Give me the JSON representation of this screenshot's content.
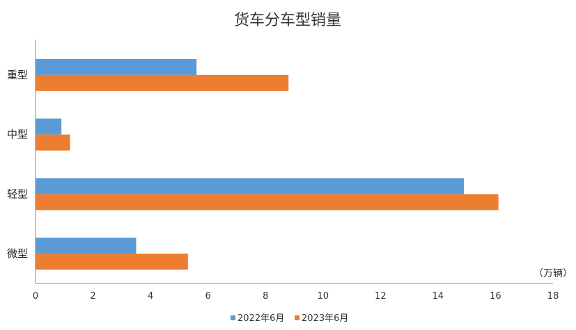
{
  "chart_data": {
    "type": "bar",
    "orientation": "horizontal",
    "title": "货车分车型销量",
    "unit": "（万辆）",
    "categories": [
      "重型",
      "中型",
      "轻型",
      "微型"
    ],
    "series": [
      {
        "name": "2022年6月",
        "color": "#5B9BD5",
        "values": [
          5.6,
          0.9,
          14.9,
          3.5
        ]
      },
      {
        "name": "2023年6月",
        "color": "#ED7D31",
        "values": [
          8.8,
          1.2,
          16.1,
          5.3
        ]
      }
    ],
    "xlim": [
      0,
      18
    ],
    "xticks": [
      "0",
      "2",
      "4",
      "6",
      "8",
      "10",
      "12",
      "14",
      "16",
      "18"
    ],
    "grid": false,
    "legend": "bottom"
  }
}
